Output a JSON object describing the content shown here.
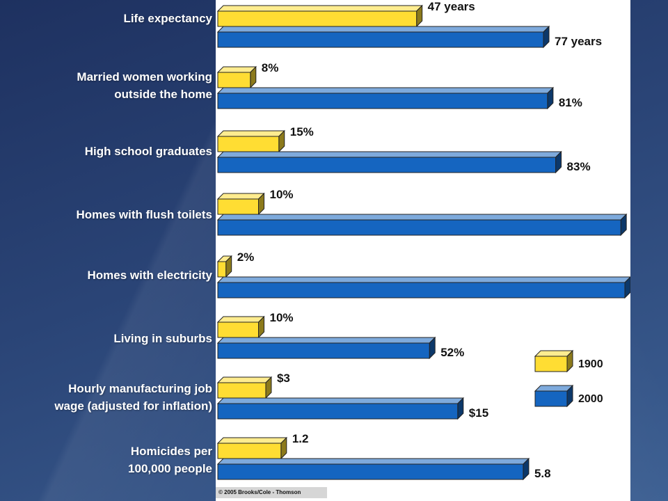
{
  "chart_data": {
    "type": "bar",
    "categories": [
      "Life expectancy",
      "Married women working outside the home",
      "High school graduates",
      "Homes with flush toilets",
      "Homes with electricity",
      "Living in suburbs",
      "Hourly manufacturing job wage (adjusted for inflation)",
      "Homicides per 100,000 people"
    ],
    "category_lines": [
      [
        "Life expectancy"
      ],
      [
        "Married women working",
        "outside the home"
      ],
      [
        "High school graduates"
      ],
      [
        "Homes with flush toilets"
      ],
      [
        "Homes with electricity"
      ],
      [
        "Living in suburbs"
      ],
      [
        "Hourly manufacturing job",
        "wage (adjusted for inflation)"
      ],
      [
        "Homicides per",
        "100,000 people"
      ]
    ],
    "series": [
      {
        "name": "1900",
        "color": "#ffdd33",
        "values": [
          47,
          8,
          15,
          10,
          2,
          10,
          3,
          1.2
        ],
        "labels": [
          "47 years",
          "8%",
          "15%",
          "10%",
          "2%",
          "10%",
          "$3",
          "1.2"
        ]
      },
      {
        "name": "2000",
        "color": "#1565c0",
        "values": [
          77,
          81,
          83,
          99,
          100,
          52,
          15,
          5.8
        ],
        "labels": [
          "77 years",
          "81%",
          "83%",
          "",
          "",
          "52%",
          "$15",
          "5.8"
        ]
      }
    ],
    "legend": {
      "position": "bottom-right",
      "entries": [
        "1900",
        "2000"
      ]
    },
    "copyright": "© 2005 Brooks/Cole - Thomson"
  }
}
